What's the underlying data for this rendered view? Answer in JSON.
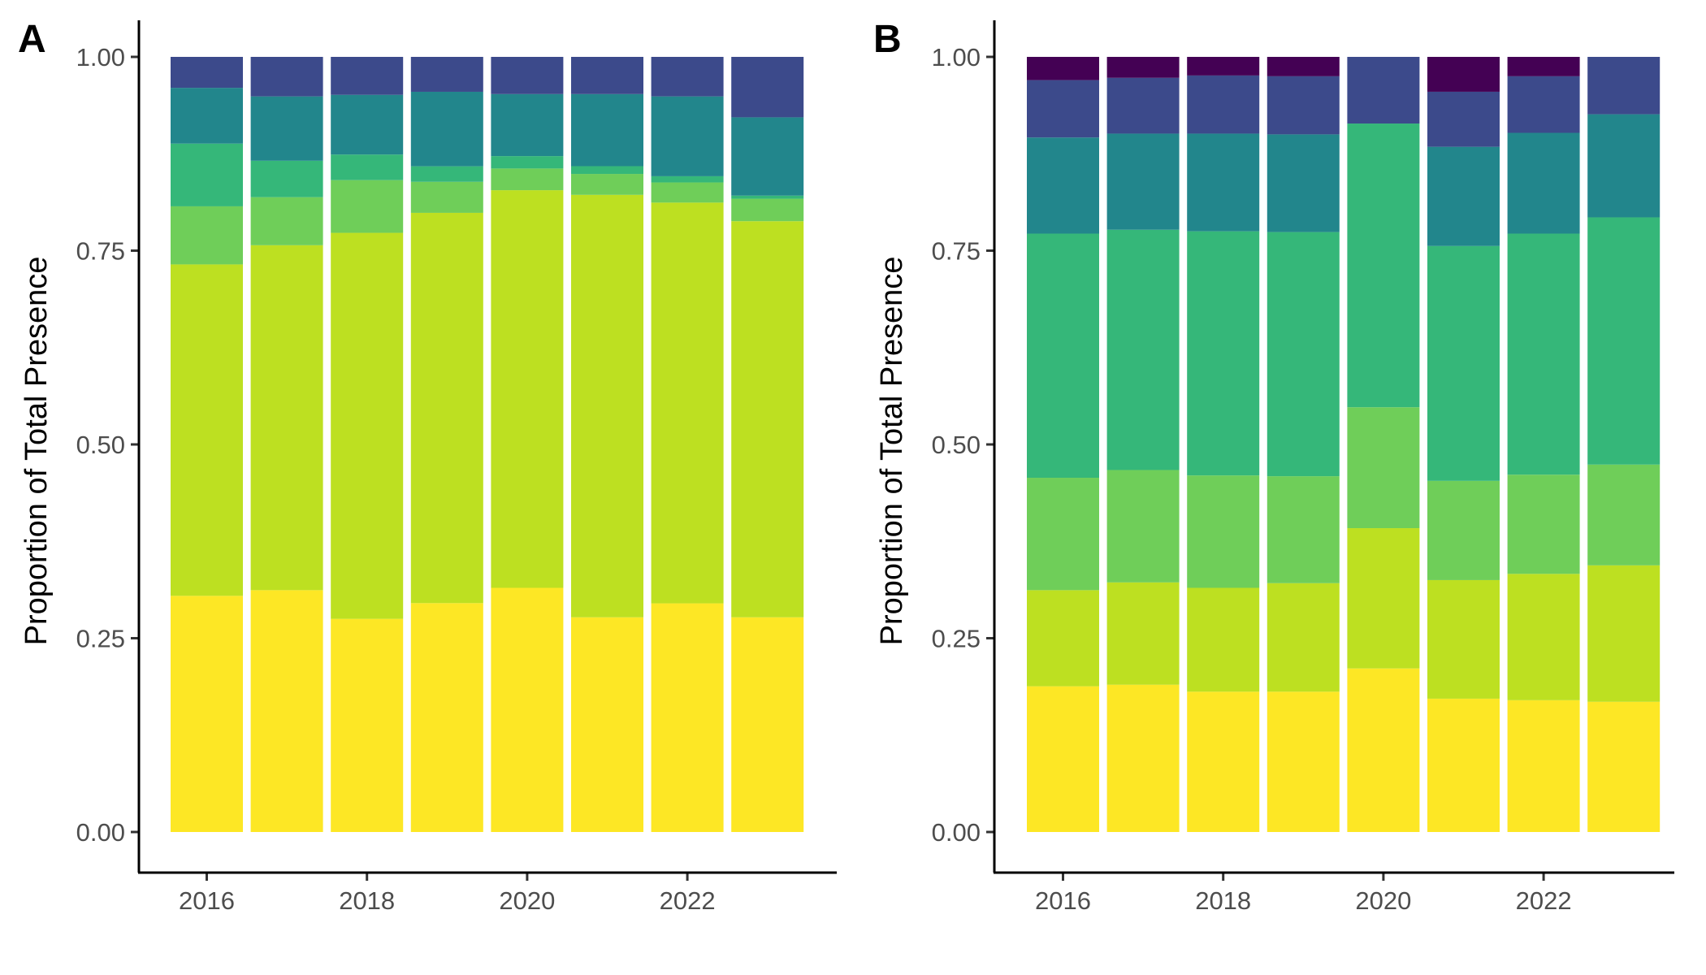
{
  "palette": [
    "#FDE725",
    "#BDE021",
    "#6FCE59",
    "#35B779",
    "#22868C",
    "#3C4A8B",
    "#440154"
  ],
  "chart_data": [
    {
      "panel": "A",
      "type": "bar",
      "stacked": true,
      "ylabel": "Proportion of Total Presence",
      "xlabel": "",
      "ylim": [
        0,
        1
      ],
      "yticks": [
        "0.00",
        "0.25",
        "0.50",
        "0.75",
        "1.00"
      ],
      "xticks": [
        "2016",
        "2018",
        "2020",
        "2022"
      ],
      "grid": false,
      "legend": "none",
      "categories": [
        "2016",
        "2017",
        "2018",
        "2019",
        "2020",
        "2021",
        "2022",
        "2023"
      ],
      "series": [
        {
          "color": "#FDE725",
          "values": [
            0.305,
            0.312,
            0.275,
            0.295,
            0.315,
            0.277,
            0.295,
            0.277
          ]
        },
        {
          "color": "#BDE021",
          "values": [
            0.428,
            0.445,
            0.498,
            0.503,
            0.513,
            0.545,
            0.517,
            0.511
          ]
        },
        {
          "color": "#6FCE59",
          "values": [
            0.075,
            0.062,
            0.068,
            0.04,
            0.028,
            0.027,
            0.026,
            0.029
          ]
        },
        {
          "color": "#35B779",
          "values": [
            0.081,
            0.047,
            0.033,
            0.02,
            0.016,
            0.01,
            0.008,
            0.004
          ]
        },
        {
          "color": "#22868C",
          "values": [
            0.072,
            0.083,
            0.077,
            0.096,
            0.08,
            0.093,
            0.103,
            0.101
          ]
        },
        {
          "color": "#3C4A8B",
          "values": [
            0.04,
            0.051,
            0.049,
            0.045,
            0.048,
            0.048,
            0.051,
            0.078
          ]
        }
      ]
    },
    {
      "panel": "B",
      "type": "bar",
      "stacked": true,
      "ylabel": "Proportion of Total Presence",
      "xlabel": "",
      "ylim": [
        0,
        1
      ],
      "yticks": [
        "0.00",
        "0.25",
        "0.50",
        "0.75",
        "1.00"
      ],
      "xticks": [
        "2016",
        "2018",
        "2020",
        "2022"
      ],
      "grid": false,
      "legend": "none",
      "categories": [
        "2016",
        "2017",
        "2018",
        "2019",
        "2020",
        "2021",
        "2022",
        "2023"
      ],
      "series": [
        {
          "color": "#FDE725",
          "values": [
            0.188,
            0.19,
            0.181,
            0.181,
            0.211,
            0.172,
            0.17,
            0.168
          ]
        },
        {
          "color": "#BDE021",
          "values": [
            0.124,
            0.132,
            0.134,
            0.14,
            0.181,
            0.153,
            0.163,
            0.176
          ]
        },
        {
          "color": "#6FCE59",
          "values": [
            0.145,
            0.145,
            0.145,
            0.138,
            0.156,
            0.128,
            0.128,
            0.13
          ]
        },
        {
          "color": "#35B779",
          "values": [
            0.315,
            0.31,
            0.315,
            0.315,
            0.366,
            0.303,
            0.311,
            0.319
          ]
        },
        {
          "color": "#22868C",
          "values": [
            0.124,
            0.124,
            0.126,
            0.126,
            0.0,
            0.128,
            0.13,
            0.133
          ]
        },
        {
          "color": "#3C4A8B",
          "values": [
            0.074,
            0.072,
            0.075,
            0.075,
            0.086,
            0.071,
            0.073,
            0.074
          ]
        },
        {
          "color": "#440154",
          "values": [
            0.03,
            0.027,
            0.024,
            0.025,
            0.0,
            0.045,
            0.025,
            0.0
          ]
        }
      ]
    }
  ]
}
